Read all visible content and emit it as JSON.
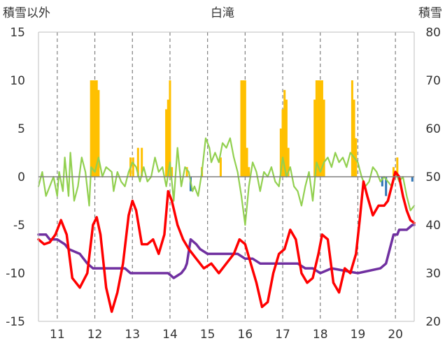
{
  "chart_data": {
    "type": "line",
    "title": "白滝",
    "ylabel_left": "積雪以外",
    "ylabel_right": "積雪",
    "x_ticks": [
      "11",
      "12",
      "13",
      "14",
      "15",
      "16",
      "17",
      "18",
      "19",
      "20"
    ],
    "x_range": [
      10.5,
      20.5
    ],
    "left_axis": {
      "range": [
        -15,
        15
      ],
      "ticks": [
        "15",
        "10",
        "5",
        "0",
        "-5",
        "-10",
        "-15"
      ]
    },
    "right_axis": {
      "range": [
        20,
        80
      ],
      "ticks": [
        "80",
        "70",
        "60",
        "50",
        "40",
        "30",
        "20"
      ]
    },
    "grid": "vertical dashed at each day",
    "colors": {
      "red": "#ff0000",
      "purple": "#7030a0",
      "green": "#92d050",
      "orange_bar": "#ffc000",
      "blue_bar": "#2e75b6",
      "grid": "#808080"
    },
    "series": [
      {
        "color_key": "red",
        "axis": "left",
        "x": [
          10.5,
          10.65,
          10.8,
          10.95,
          11.1,
          11.25,
          11.4,
          11.6,
          11.8,
          11.95,
          12.05,
          12.15,
          12.3,
          12.45,
          12.6,
          12.75,
          12.9,
          13.0,
          13.1,
          13.25,
          13.4,
          13.55,
          13.7,
          13.85,
          13.95,
          14.05,
          14.2,
          14.35,
          14.5,
          14.7,
          14.9,
          15.1,
          15.3,
          15.5,
          15.7,
          15.85,
          16.0,
          16.15,
          16.3,
          16.45,
          16.6,
          16.75,
          16.9,
          17.05,
          17.2,
          17.35,
          17.5,
          17.65,
          17.8,
          17.95,
          18.05,
          18.2,
          18.35,
          18.5,
          18.65,
          18.8,
          18.95,
          19.05,
          19.15,
          19.25,
          19.4,
          19.55,
          19.7,
          19.8,
          19.9,
          20.0,
          20.1,
          20.2,
          20.3,
          20.4,
          20.5
        ],
        "values": [
          -6.5,
          -7.0,
          -6.8,
          -6.0,
          -4.5,
          -6.0,
          -10.5,
          -11.5,
          -10.0,
          -5.0,
          -4.2,
          -6.0,
          -11.5,
          -14.0,
          -12.0,
          -9.0,
          -4.0,
          -2.5,
          -3.5,
          -7.0,
          -7.0,
          -6.5,
          -8.0,
          -6.0,
          -1.5,
          -2.5,
          -5.0,
          -6.5,
          -7.5,
          -8.5,
          -9.5,
          -9.0,
          -10.0,
          -9.0,
          -8.0,
          -6.5,
          -7.0,
          -9.0,
          -11.0,
          -13.5,
          -13.0,
          -10.0,
          -8.0,
          -7.5,
          -5.5,
          -6.5,
          -10.0,
          -11.0,
          -10.5,
          -8.0,
          -6.0,
          -6.5,
          -11.0,
          -12.0,
          -9.5,
          -10.0,
          -8.0,
          -4.5,
          -0.5,
          -2.0,
          -4.0,
          -3.0,
          -3.0,
          -2.5,
          -1.0,
          0.5,
          0.0,
          -2.0,
          -3.5,
          -4.5,
          -4.8
        ]
      },
      {
        "color_key": "purple",
        "axis": "right",
        "x": [
          10.5,
          10.7,
          10.8,
          11.0,
          11.2,
          11.3,
          11.6,
          11.8,
          11.95,
          12.5,
          12.8,
          12.95,
          13.5,
          13.95,
          14.1,
          14.3,
          14.4,
          14.45,
          14.55,
          14.7,
          14.8,
          15.0,
          15.2,
          15.5,
          15.8,
          16.0,
          16.2,
          16.4,
          17.0,
          17.4,
          17.6,
          17.8,
          18.0,
          18.3,
          19.0,
          19.6,
          19.75,
          19.85,
          19.95,
          20.05,
          20.1,
          20.3,
          20.45,
          20.5
        ],
        "values": [
          38,
          38,
          37,
          37,
          36,
          35,
          34,
          32,
          31,
          31,
          31,
          30,
          30,
          30,
          29,
          30,
          31,
          32,
          37,
          36,
          35,
          34,
          34,
          34,
          34,
          33,
          33,
          32,
          32,
          32,
          31,
          31,
          30,
          31,
          30,
          31,
          32,
          35,
          38,
          38,
          39,
          39,
          40,
          40
        ]
      },
      {
        "color_key": "green",
        "axis": "left",
        "x": [
          10.5,
          10.6,
          10.7,
          10.8,
          10.9,
          11.0,
          11.05,
          11.15,
          11.2,
          11.3,
          11.35,
          11.45,
          11.55,
          11.65,
          11.75,
          11.85,
          11.9,
          12.0,
          12.1,
          12.2,
          12.3,
          12.45,
          12.5,
          12.6,
          12.7,
          12.8,
          12.9,
          13.0,
          13.1,
          13.2,
          13.3,
          13.4,
          13.5,
          13.6,
          13.7,
          13.8,
          13.9,
          14.0,
          14.1,
          14.2,
          14.3,
          14.4,
          14.5,
          14.6,
          14.65,
          14.75,
          14.85,
          14.95,
          15.05,
          15.1,
          15.2,
          15.3,
          15.4,
          15.5,
          15.6,
          15.7,
          15.8,
          15.9,
          16.0,
          16.1,
          16.2,
          16.3,
          16.4,
          16.5,
          16.6,
          16.7,
          16.8,
          16.9,
          17.0,
          17.1,
          17.2,
          17.3,
          17.4,
          17.5,
          17.6,
          17.7,
          17.8,
          17.9,
          18.0,
          18.1,
          18.2,
          18.3,
          18.4,
          18.5,
          18.6,
          18.7,
          18.8,
          18.9,
          19.0,
          19.1,
          19.2,
          19.3,
          19.4,
          19.5,
          19.6,
          19.7,
          19.8,
          19.9,
          20.0,
          20.1,
          20.2,
          20.3,
          20.4,
          20.5
        ],
        "values": [
          -1.0,
          0.5,
          -2.0,
          -1.0,
          0.0,
          -2.0,
          0.5,
          -1.5,
          2.0,
          -2.0,
          2.5,
          -2.5,
          -1.0,
          2.0,
          0.5,
          -3.0,
          1.0,
          0.5,
          2.0,
          0.0,
          1.0,
          0.5,
          -1.5,
          0.5,
          -0.5,
          -1.0,
          0.5,
          1.5,
          1.0,
          -0.5,
          1.0,
          -0.5,
          0.0,
          2.0,
          0.5,
          1.0,
          -1.0,
          1.5,
          -2.5,
          3.0,
          -1.0,
          1.0,
          0.5,
          -1.5,
          -1.0,
          -2.0,
          0.5,
          4.0,
          3.0,
          1.5,
          2.5,
          1.5,
          3.5,
          3.0,
          4.0,
          2.0,
          0.5,
          -2.0,
          -5.0,
          -1.0,
          1.5,
          0.5,
          -1.5,
          0.5,
          0.0,
          1.0,
          -0.5,
          -1.0,
          2.0,
          0.0,
          1.0,
          -1.0,
          -1.5,
          -3.0,
          -1.0,
          0.5,
          -2.5,
          1.5,
          0.5,
          1.5,
          2.0,
          1.0,
          2.5,
          1.5,
          2.0,
          1.0,
          2.5,
          2.0,
          1.5,
          0.0,
          -1.0,
          -0.5,
          1.0,
          0.5,
          -0.5,
          0.0,
          -0.5,
          -1.0,
          0.5,
          -0.5,
          0.0,
          -2.0,
          -3.5,
          -3.0
        ]
      }
    ],
    "bars": [
      {
        "x": 11.9,
        "value": 10,
        "color_key": "orange_bar"
      },
      {
        "x": 11.95,
        "value": 10,
        "color_key": "orange_bar"
      },
      {
        "x": 12.0,
        "value": 10,
        "color_key": "orange_bar"
      },
      {
        "x": 12.05,
        "value": 10,
        "color_key": "orange_bar"
      },
      {
        "x": 12.1,
        "value": 9,
        "color_key": "orange_bar"
      },
      {
        "x": 12.95,
        "value": 2,
        "color_key": "orange_bar"
      },
      {
        "x": 13.02,
        "value": 2,
        "color_key": "orange_bar"
      },
      {
        "x": 13.15,
        "value": 3,
        "color_key": "orange_bar"
      },
      {
        "x": 13.25,
        "value": 3,
        "color_key": "orange_bar"
      },
      {
        "x": 13.9,
        "value": 7,
        "color_key": "orange_bar"
      },
      {
        "x": 13.95,
        "value": 8,
        "color_key": "orange_bar"
      },
      {
        "x": 14.0,
        "value": 10,
        "color_key": "orange_bar"
      },
      {
        "x": 14.05,
        "value": 1,
        "color_key": "orange_bar"
      },
      {
        "x": 14.45,
        "value": 1,
        "color_key": "orange_bar"
      },
      {
        "x": 14.55,
        "value": -1.5,
        "color_key": "blue_bar"
      },
      {
        "x": 14.85,
        "value": 1,
        "color_key": "orange_bar"
      },
      {
        "x": 15.35,
        "value": 2,
        "color_key": "orange_bar"
      },
      {
        "x": 15.9,
        "value": 10,
        "color_key": "orange_bar"
      },
      {
        "x": 15.95,
        "value": 10,
        "color_key": "orange_bar"
      },
      {
        "x": 16.0,
        "value": 10,
        "color_key": "orange_bar"
      },
      {
        "x": 16.05,
        "value": 3,
        "color_key": "orange_bar"
      },
      {
        "x": 16.1,
        "value": 1,
        "color_key": "orange_bar"
      },
      {
        "x": 16.95,
        "value": 5,
        "color_key": "orange_bar"
      },
      {
        "x": 17.0,
        "value": 7,
        "color_key": "orange_bar"
      },
      {
        "x": 17.05,
        "value": 9,
        "color_key": "orange_bar"
      },
      {
        "x": 17.1,
        "value": 8,
        "color_key": "orange_bar"
      },
      {
        "x": 17.15,
        "value": 3,
        "color_key": "orange_bar"
      },
      {
        "x": 17.85,
        "value": 8,
        "color_key": "orange_bar"
      },
      {
        "x": 17.9,
        "value": 10,
        "color_key": "orange_bar"
      },
      {
        "x": 17.95,
        "value": 10,
        "color_key": "orange_bar"
      },
      {
        "x": 18.0,
        "value": 10,
        "color_key": "orange_bar"
      },
      {
        "x": 18.05,
        "value": 10,
        "color_key": "orange_bar"
      },
      {
        "x": 18.1,
        "value": 8,
        "color_key": "orange_bar"
      },
      {
        "x": 18.85,
        "value": 10,
        "color_key": "orange_bar"
      },
      {
        "x": 18.9,
        "value": 8,
        "color_key": "orange_bar"
      },
      {
        "x": 18.95,
        "value": 4,
        "color_key": "orange_bar"
      },
      {
        "x": 19.65,
        "value": -1,
        "color_key": "blue_bar"
      },
      {
        "x": 19.75,
        "value": -2,
        "color_key": "blue_bar"
      },
      {
        "x": 19.95,
        "value": 1,
        "color_key": "orange_bar"
      },
      {
        "x": 20.05,
        "value": 2,
        "color_key": "orange_bar"
      },
      {
        "x": 20.45,
        "value": -0.5,
        "color_key": "blue_bar"
      }
    ]
  }
}
